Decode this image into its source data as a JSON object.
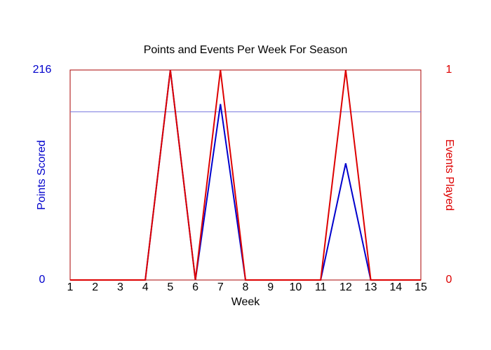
{
  "chart_data": {
    "type": "line",
    "title": "Points and Events Per Week For Season",
    "x_label": "Week",
    "y_label": "Points Scored",
    "y2_label": "Events Played",
    "x": [
      1,
      2,
      3,
      4,
      5,
      6,
      7,
      8,
      9,
      10,
      11,
      12,
      13,
      14,
      15
    ],
    "xlim": [
      1,
      15
    ],
    "xticks": [
      1,
      2,
      3,
      4,
      5,
      6,
      7,
      8,
      9,
      10,
      11,
      12,
      13,
      14,
      15
    ],
    "ylim": [
      0,
      216
    ],
    "yticks": [
      0,
      216
    ],
    "y2lim": [
      0,
      1
    ],
    "y2ticks": [
      0,
      1
    ],
    "reference_line": {
      "value": 173,
      "color": "#7777dd"
    },
    "series": [
      {
        "name": "Points Scored",
        "color": "#0000cc",
        "values": [
          0,
          0,
          0,
          0,
          216,
          0,
          181,
          0,
          0,
          0,
          0,
          120,
          0,
          0,
          0
        ]
      },
      {
        "name": "Events Played",
        "color": "#dd0000",
        "axis": "y2",
        "values": [
          0,
          0,
          0,
          0,
          1,
          0,
          1,
          0,
          0,
          0,
          0,
          1,
          0,
          0,
          0
        ]
      }
    ]
  }
}
